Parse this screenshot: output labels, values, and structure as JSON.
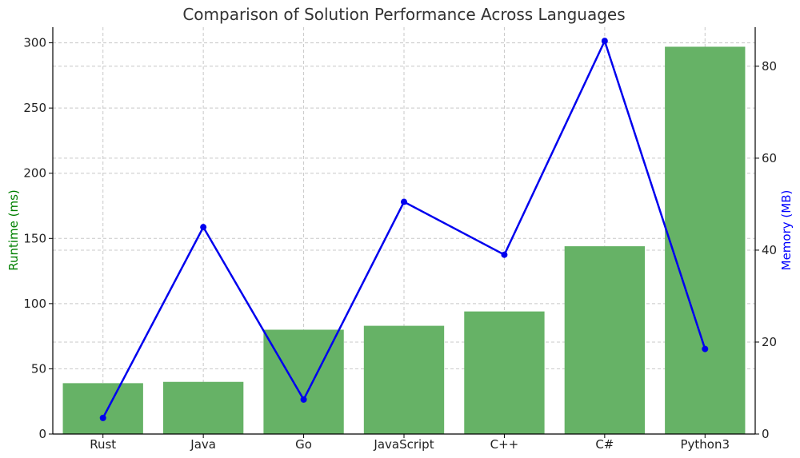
{
  "chart_data": {
    "type": "bar+line",
    "title": "Comparison of Solution Performance Across Languages",
    "categories": [
      "Rust",
      "Java",
      "Go",
      "JavaScript",
      "C++",
      "C#",
      "Python3"
    ],
    "series": [
      {
        "name": "Runtime (ms)",
        "type": "bar",
        "axis": "left",
        "color": "#66b266",
        "values": [
          39,
          40,
          80,
          83,
          94,
          144,
          297
        ]
      },
      {
        "name": "Memory (MB)",
        "type": "line",
        "axis": "right",
        "color": "#0000ee",
        "values": [
          3.5,
          45,
          7.5,
          50.5,
          39,
          85.5,
          18.5
        ]
      }
    ],
    "ylabel_left": "Runtime (ms)",
    "ylabel_left_color": "#008000",
    "ylim_left": [
      0,
      312
    ],
    "yticks_left": [
      0,
      50,
      100,
      150,
      200,
      250,
      300
    ],
    "ylabel_right": "Memory (MB)",
    "ylabel_right_color": "#0000ff",
    "ylim_right": [
      0,
      88.5
    ],
    "yticks_right": [
      0,
      20,
      40,
      60,
      80
    ],
    "grid": true
  }
}
